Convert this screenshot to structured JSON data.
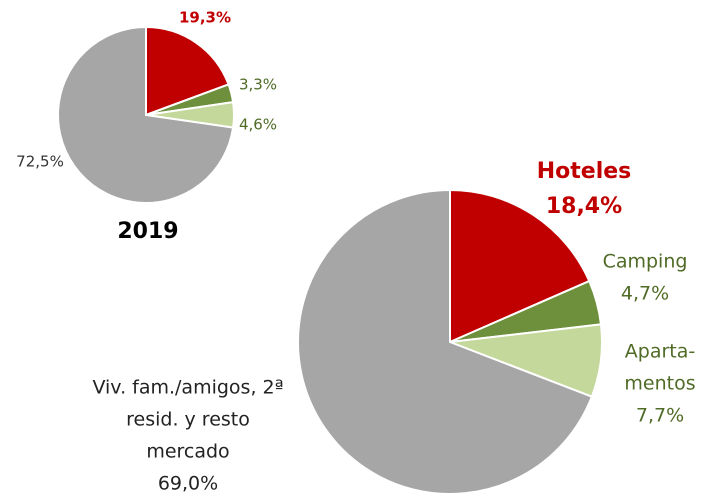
{
  "chart_data": [
    {
      "type": "pie",
      "title": "2019",
      "values": [
        19.3,
        3.3,
        4.6,
        72.5
      ],
      "value_labels": [
        "19,3%",
        "3,3%",
        "4,6%",
        "72,5%"
      ],
      "colors": [
        "#c00000",
        "#6e8f3c",
        "#c4d89c",
        "#a6a6a6"
      ],
      "label_colors": [
        "#c00000",
        "#4f6b26",
        "#4f6b26",
        "#333333"
      ]
    },
    {
      "type": "pie",
      "categories": [
        [
          "Hoteles"
        ],
        [
          "Camping"
        ],
        [
          "Aparta-",
          "mentos"
        ],
        [
          "Viv. fam./amigos, 2ª",
          "resid. y resto",
          "mercado"
        ]
      ],
      "values": [
        18.4,
        4.7,
        7.7,
        69.0
      ],
      "value_labels": [
        "18,4%",
        "4,7%",
        "7,7%",
        "69,0%"
      ],
      "colors": [
        "#c00000",
        "#6e8f3c",
        "#c4d89c",
        "#a6a6a6"
      ],
      "label_colors": [
        "#c00000",
        "#4f6b26",
        "#4f6b26",
        "#222222"
      ]
    }
  ]
}
